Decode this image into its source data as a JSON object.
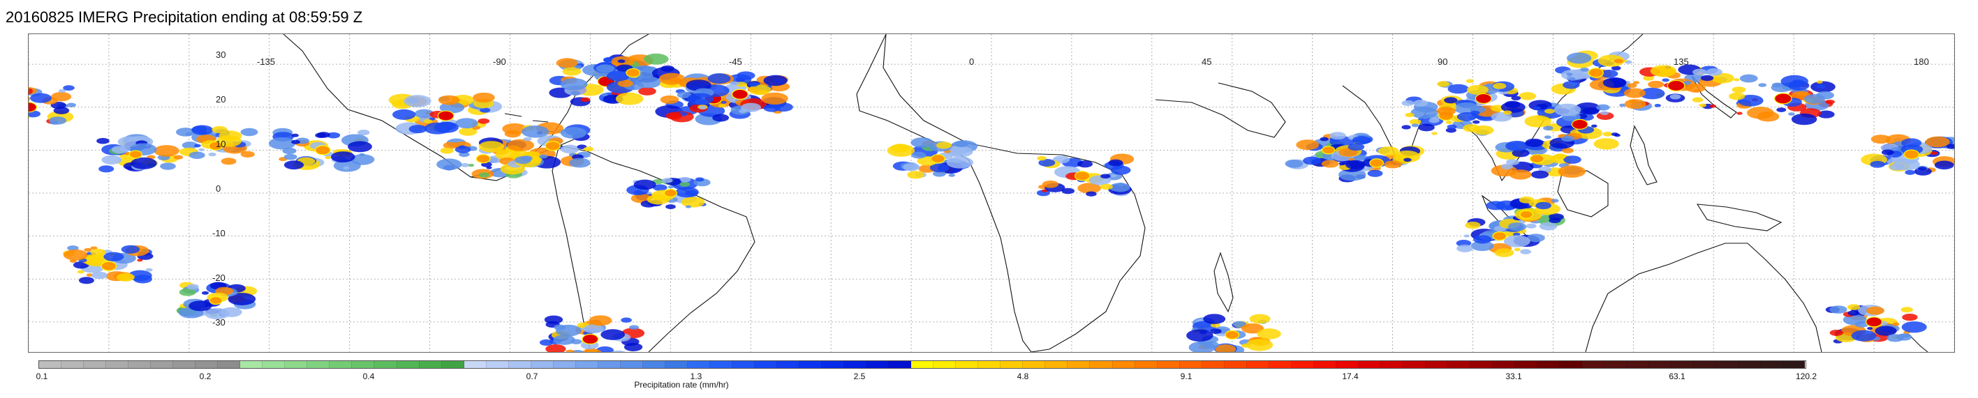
{
  "title": "20160825 IMERG Precipitation ending at 08:59:59 Z",
  "map": {
    "projection": "equirectangular",
    "lon_range": [
      -180,
      180
    ],
    "lat_range": [
      -37,
      37
    ],
    "grid": "dotted",
    "latitude_labels": [
      "30",
      "20",
      "10",
      "0",
      "-10",
      "-20",
      "-30"
    ],
    "longitude_labels": [
      "-135",
      "-90",
      "-45",
      "0",
      "45",
      "90",
      "135",
      "180"
    ]
  },
  "colorbar": {
    "label": "Precipitation rate (mm/hr)",
    "tick_labels": [
      "0.1",
      "0.2",
      "0.4",
      "0.7",
      "1.3",
      "2.5",
      "4.8",
      "9.1",
      "17.4",
      "33.1",
      "63.1",
      "120.2"
    ],
    "colors": [
      "#bdbdbd",
      "#b7b7b7",
      "#b1b1b1",
      "#ababab",
      "#a5a5a5",
      "#9f9f9f",
      "#999999",
      "#939393",
      "#8d8d8d",
      "#a7e6a3",
      "#9ae098",
      "#8dd98c",
      "#80d281",
      "#74cb75",
      "#68c46a",
      "#5cbd5f",
      "#52b655",
      "#48ae4b",
      "#40a442",
      "#c9d7f7",
      "#b9cdf5",
      "#a9c3f3",
      "#99b8f1",
      "#8aaeef",
      "#7aa4ed",
      "#6a99eb",
      "#5b8fe9",
      "#4b84e7",
      "#3c79e5",
      "#2f6cf3",
      "#2660f5",
      "#1f54f4",
      "#1848f3",
      "#123df2",
      "#0d33ef",
      "#082aea",
      "#0421e3",
      "#0118db",
      "#0010d0",
      "#fff800",
      "#ffed00",
      "#ffe200",
      "#ffd700",
      "#ffcb00",
      "#ffbf00",
      "#ffb300",
      "#ffa500",
      "#ff9700",
      "#ff8900",
      "#ff7b00",
      "#ff6d00",
      "#ff6000",
      "#ff5200",
      "#ff4400",
      "#ff3600",
      "#fe2800",
      "#f91b00",
      "#f20f00",
      "#ea0500",
      "#dd0000",
      "#cf0000",
      "#c10000",
      "#b30000",
      "#a50000",
      "#970000",
      "#890000",
      "#7b0000",
      "#6d0000",
      "#600000",
      "#5a0f0f",
      "#551010",
      "#501111",
      "#4b1212",
      "#461313",
      "#411414",
      "#3c1515",
      "#371616",
      "#321717",
      "#2d1818"
    ],
    "tick_fractions": [
      0,
      0.1071,
      0.2143,
      0.3214,
      0.4286,
      0.5357,
      0.6429,
      0.75,
      0.8571,
      0.9286,
      0.9643,
      1.0
    ]
  },
  "precipitation_systems": [
    {
      "lon": -180,
      "lat": 20,
      "intensity": 0.8
    },
    {
      "lon": -160,
      "lat": 9,
      "intensity": 0.5
    },
    {
      "lon": -145,
      "lat": 11,
      "intensity": 0.6
    },
    {
      "lon": -125,
      "lat": 10,
      "intensity": 0.7
    },
    {
      "lon": -102,
      "lat": 18,
      "intensity": 0.8
    },
    {
      "lon": -95,
      "lat": 8,
      "intensity": 0.6
    },
    {
      "lon": -82,
      "lat": 11,
      "intensity": 0.7
    },
    {
      "lon": -72,
      "lat": 26,
      "intensity": 0.9
    },
    {
      "lon": -67,
      "lat": 28,
      "intensity": 0.6
    },
    {
      "lon": -52,
      "lat": 22,
      "intensity": 0.9
    },
    {
      "lon": -47,
      "lat": 23,
      "intensity": 0.8
    },
    {
      "lon": -60,
      "lat": 0,
      "intensity": 0.5
    },
    {
      "lon": -10,
      "lat": 8,
      "intensity": 0.6
    },
    {
      "lon": 17,
      "lat": 4,
      "intensity": 0.7
    },
    {
      "lon": 63,
      "lat": 10,
      "intensity": 0.5
    },
    {
      "lon": 72,
      "lat": 7,
      "intensity": 0.6
    },
    {
      "lon": 85,
      "lat": 18,
      "intensity": 0.7
    },
    {
      "lon": 92,
      "lat": 22,
      "intensity": 0.8
    },
    {
      "lon": 102,
      "lat": 8,
      "intensity": 0.6
    },
    {
      "lon": 110,
      "lat": 16,
      "intensity": 0.8
    },
    {
      "lon": 113,
      "lat": 28,
      "intensity": 0.7
    },
    {
      "lon": 128,
      "lat": 25,
      "intensity": 0.9
    },
    {
      "lon": 148,
      "lat": 22,
      "intensity": 0.9
    },
    {
      "lon": 172,
      "lat": 9,
      "intensity": 0.7
    },
    {
      "lon": 165,
      "lat": -30,
      "intensity": 0.8
    },
    {
      "lon": -165,
      "lat": -17,
      "intensity": 0.7
    },
    {
      "lon": -145,
      "lat": -25,
      "intensity": 0.5
    },
    {
      "lon": -75,
      "lat": -34,
      "intensity": 0.8
    },
    {
      "lon": 95,
      "lat": -10,
      "intensity": 0.6
    },
    {
      "lon": 100,
      "lat": -5,
      "intensity": 0.5
    },
    {
      "lon": 45,
      "lat": -33,
      "intensity": 0.6
    }
  ]
}
